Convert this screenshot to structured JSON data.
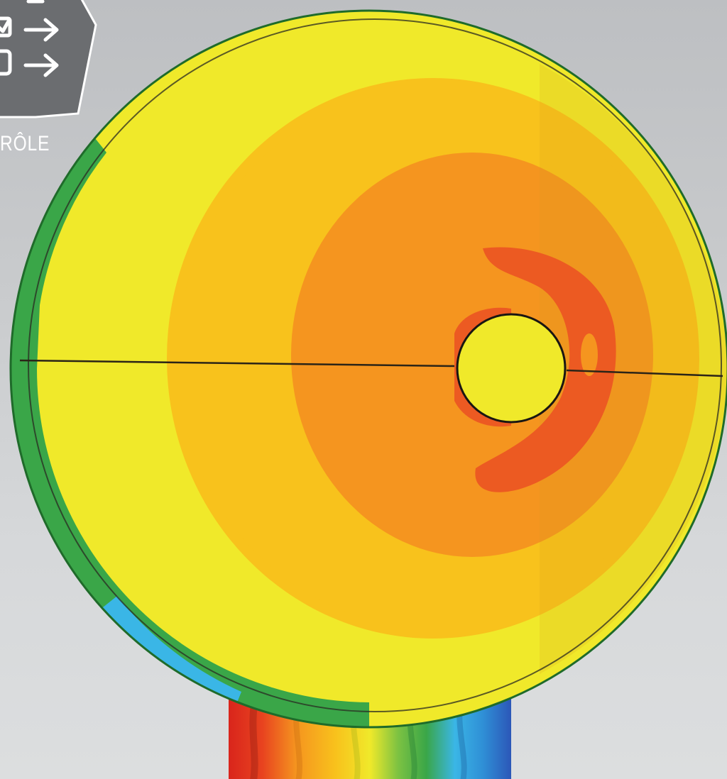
{
  "badge": {
    "label": "RÔLE",
    "icon": "checklist-arrows-icon",
    "background_color": "#6b6d70"
  },
  "figure": {
    "description_icon": "thermal-simulation-sphere",
    "colors": {
      "yellow": "#f0e92a",
      "yellow_orange": "#f8c21c",
      "orange": "#f5951f",
      "red_orange": "#ec5a22",
      "red": "#d9251c",
      "green": "#3aa648",
      "light_green": "#7cc242",
      "cyan": "#3ab6e6",
      "blue": "#2c57b8"
    }
  }
}
